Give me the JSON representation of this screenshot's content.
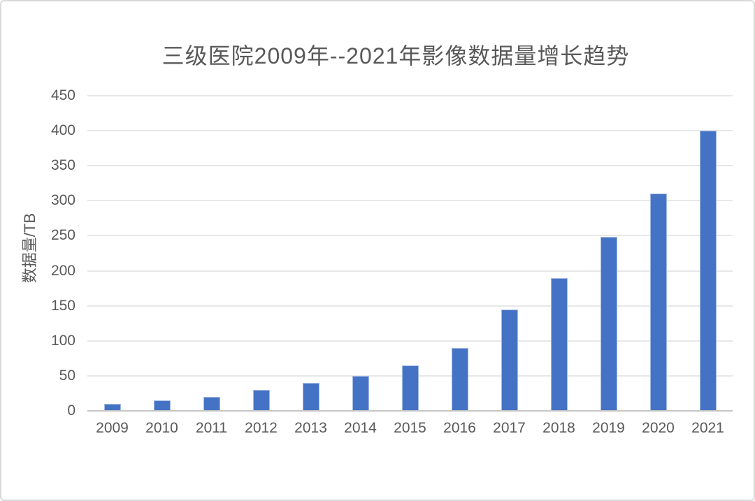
{
  "chart_data": {
    "type": "bar",
    "title": "三级医院2009年--2021年影像数据量增长趋势",
    "ylabel": "数据量/TB",
    "xlabel": "",
    "categories": [
      "2009",
      "2010",
      "2011",
      "2012",
      "2013",
      "2014",
      "2015",
      "2016",
      "2017",
      "2018",
      "2019",
      "2020",
      "2021"
    ],
    "values": [
      10,
      15,
      20,
      30,
      40,
      50,
      65,
      90,
      145,
      190,
      248,
      310,
      400
    ],
    "ylim": [
      0,
      450
    ],
    "yticks": [
      0,
      50,
      100,
      150,
      200,
      250,
      300,
      350,
      400,
      450
    ],
    "grid": true,
    "legend_position": "none",
    "bar_color": "#4472c4"
  },
  "style": {
    "background": "#ffffff",
    "frame_border_color": "#d9d9d9",
    "gridline_color": "#e7e7e7",
    "axis_line_color": "#c6c6c6",
    "text_color": "#595959"
  }
}
